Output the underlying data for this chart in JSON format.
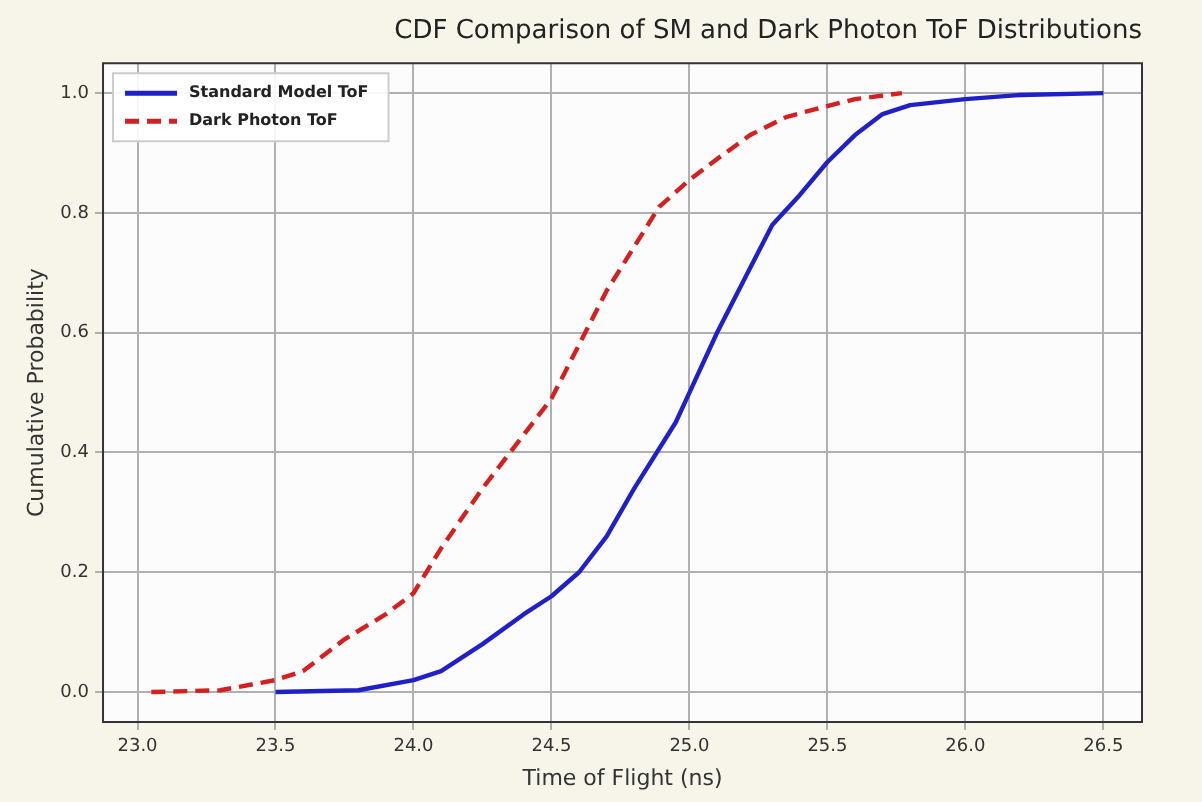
{
  "chart_data": {
    "type": "line",
    "title": "CDF Comparison of SM and Dark Photon ToF Distributions",
    "xlabel": "Time of Flight (ns)",
    "ylabel": "Cumulative Probability",
    "xlim": [
      22.875,
      26.64
    ],
    "xticks": [
      {
        "value": 23,
        "label": "23.0"
      },
      23.5,
      {
        "value": 24,
        "label": "24.0"
      },
      24.5,
      {
        "value": 25,
        "label": "25.0"
      },
      25.5,
      {
        "value": 26,
        "label": "26.0"
      },
      26.5
    ],
    "ylim": [
      -0.05,
      1.05
    ],
    "yticks": [
      {
        "value": 0,
        "label": "0.0"
      },
      0.2,
      0.4,
      0.6,
      0.8,
      {
        "value": 1,
        "label": "1.0"
      }
    ],
    "grid": true,
    "legend": "top left",
    "marker": "none",
    "series": [
      {
        "name": "Standard Model ToF",
        "color": "#2020c8",
        "line_style": "solid",
        "x": [
          23.5,
          23.8,
          24.0,
          24.1,
          24.25,
          24.4,
          24.5,
          24.6,
          24.7,
          24.8,
          24.95,
          25.0,
          25.1,
          25.2,
          25.3,
          25.4,
          25.5,
          25.6,
          25.7,
          25.8,
          26.0,
          26.2,
          26.5
        ],
        "values": [
          0.0,
          0.003,
          0.02,
          0.035,
          0.08,
          0.13,
          0.16,
          0.2,
          0.26,
          0.34,
          0.45,
          0.5,
          0.6,
          0.69,
          0.78,
          0.83,
          0.885,
          0.93,
          0.965,
          0.98,
          0.99,
          0.997,
          1.0
        ]
      },
      {
        "name": "Dark Photon ToF",
        "color": "#d42020",
        "line_style": "dashed",
        "x": [
          23.05,
          23.3,
          23.5,
          23.6,
          23.75,
          23.9,
          24.0,
          24.1,
          24.25,
          24.4,
          24.5,
          24.6,
          24.7,
          24.89,
          25.0,
          25.1,
          25.22,
          25.35,
          25.47,
          25.6,
          25.77
        ],
        "values": [
          0.0,
          0.003,
          0.02,
          0.035,
          0.088,
          0.13,
          0.165,
          0.24,
          0.34,
          0.43,
          0.49,
          0.58,
          0.67,
          0.81,
          0.855,
          0.89,
          0.93,
          0.96,
          0.975,
          0.99,
          1.0
        ]
      }
    ]
  }
}
